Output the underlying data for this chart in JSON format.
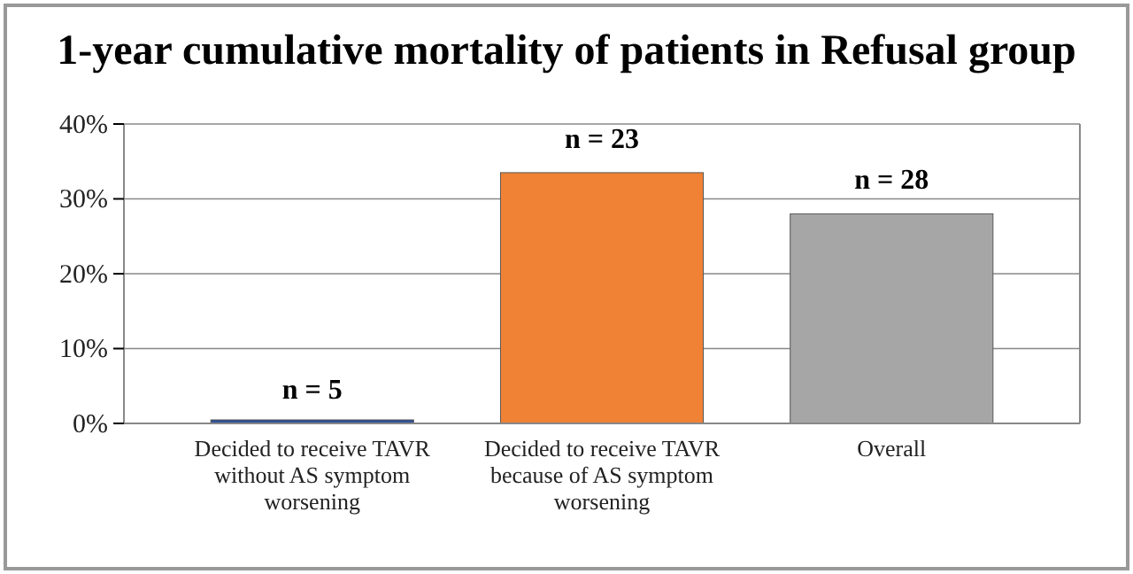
{
  "chart_data": {
    "type": "bar",
    "title": "1-year cumulative mortality of patients in Refusal group",
    "categories": [
      "Decided to receive TAVR without AS symptom worsening",
      "Decided to receive TAVR because of AS symptom worsening",
      "Overall"
    ],
    "values": [
      0,
      33.5,
      28
    ],
    "colors": [
      "#2f4f98",
      "#f08236",
      "#a6a6a6"
    ],
    "ylim": [
      0,
      40
    ],
    "yticks": [
      {
        "value": 0,
        "label": "0%"
      },
      {
        "value": 10,
        "label": "10%"
      },
      {
        "value": 20,
        "label": "20%"
      },
      {
        "value": 30,
        "label": "30%"
      },
      {
        "value": 40,
        "label": "40%"
      }
    ],
    "grid": "y",
    "annotations": [
      {
        "text": "n = 5",
        "x": "Decided to receive TAVR without AS symptom worsening",
        "y": 0
      },
      {
        "text": "n = 23",
        "x": "Decided to receive TAVR because of AS symptom worsening",
        "y": 33.5
      },
      {
        "text": "n = 28",
        "x": "Overall",
        "y": 28
      }
    ]
  }
}
